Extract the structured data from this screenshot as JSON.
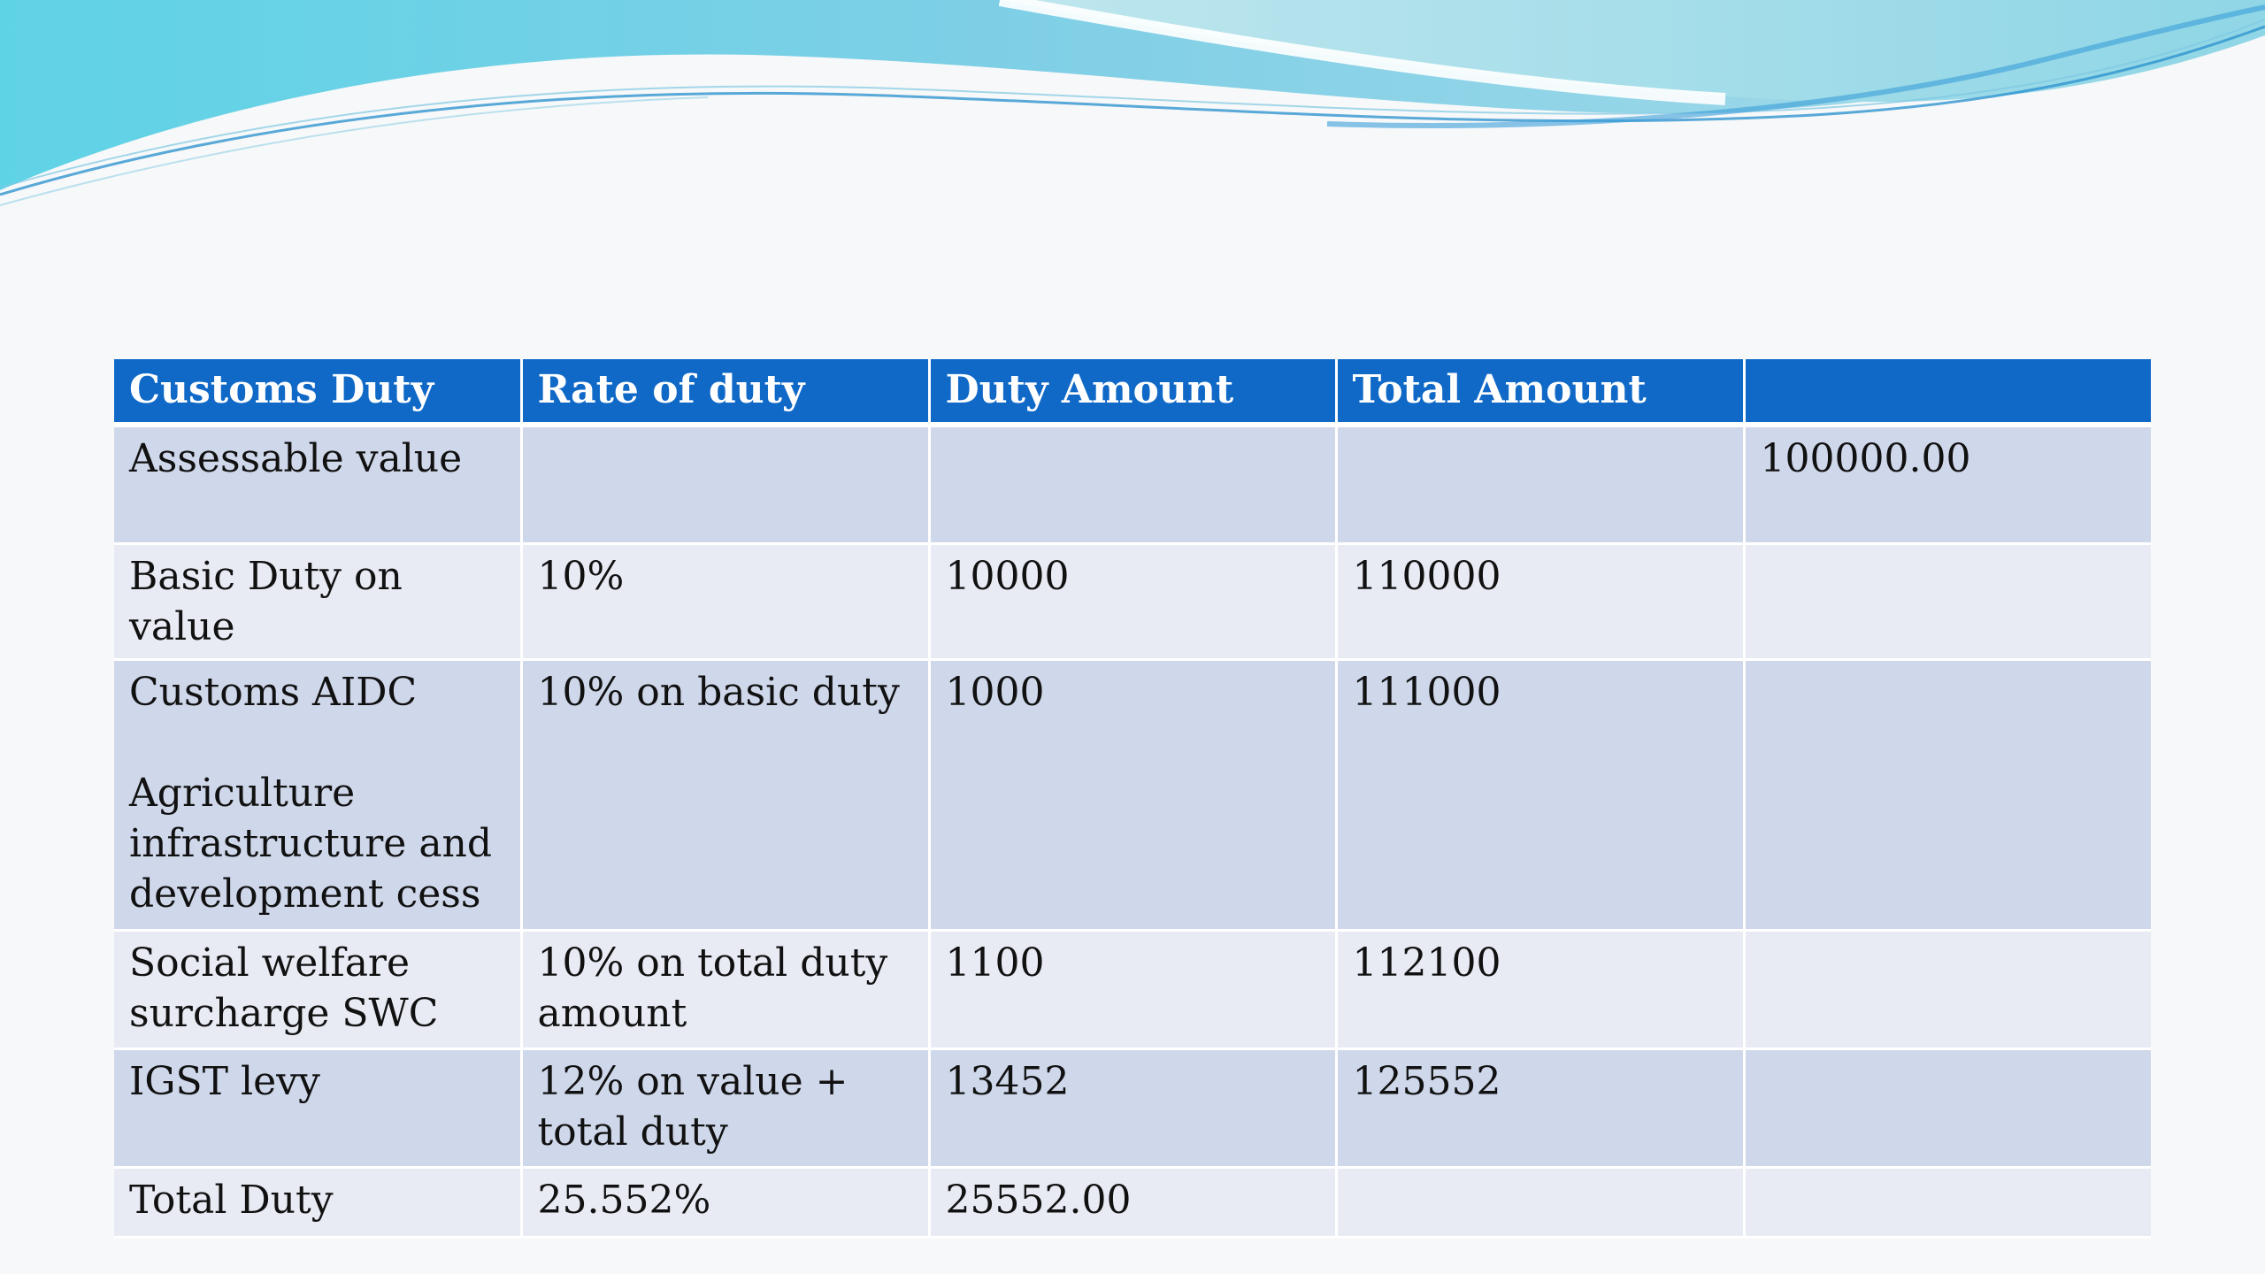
{
  "colors": {
    "header_bg": "#1069c7",
    "header_text": "#ffffff",
    "row_dark": "#cfd7ea",
    "row_light": "#e8ebf4",
    "slide_bg": "#f7f8f9",
    "wave_teal": "#5fd3e6",
    "wave_blue": "#3aa6de"
  },
  "table": {
    "headers": [
      "Customs Duty",
      "Rate of duty",
      "Duty Amount",
      "Total Amount",
      ""
    ],
    "rows": [
      [
        "Assessable value",
        "",
        "",
        "",
        "100000.00"
      ],
      [
        "Basic Duty on value",
        "10%",
        "10000",
        "110000",
        ""
      ],
      [
        "Customs AIDC\n\nAgriculture infrastructure and development cess",
        "10% on basic duty",
        "1000",
        "111000",
        ""
      ],
      [
        "Social welfare surcharge SWC",
        "10% on total duty amount",
        "1100",
        "112100",
        ""
      ],
      [
        "IGST levy",
        "12% on value + total duty",
        "13452",
        "125552",
        ""
      ],
      [
        "Total Duty",
        "25.552%",
        "25552.00",
        "",
        ""
      ]
    ]
  }
}
